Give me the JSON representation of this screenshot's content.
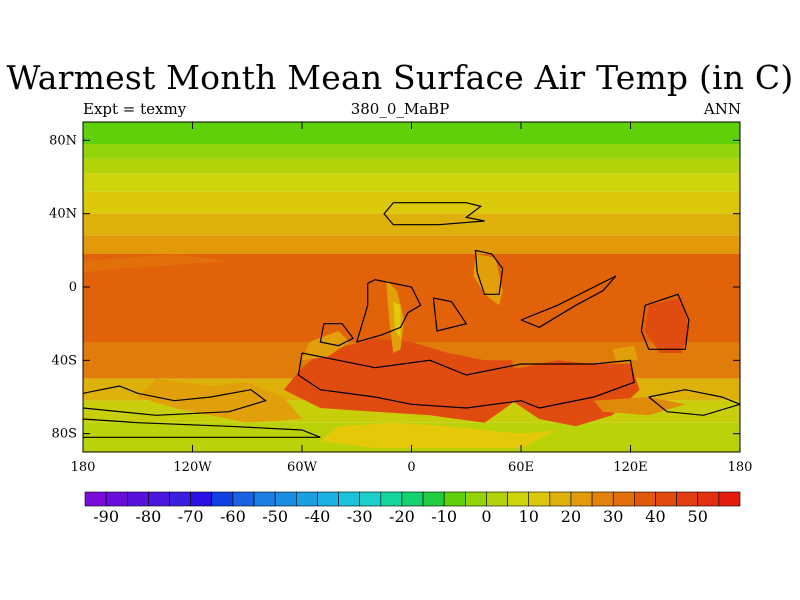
{
  "title": "Warmest Month Mean Surface Air Temp (in C)",
  "subtitle_left": "Expt = texmy",
  "subtitle_center": "380_0_MaBP",
  "subtitle_right": "ANN",
  "map": {
    "lon_range": [
      -180,
      180
    ],
    "lat_range": [
      -90,
      90
    ],
    "x_ticks": [
      {
        "value": -180,
        "label": "180"
      },
      {
        "value": -120,
        "label": "120W"
      },
      {
        "value": -60,
        "label": "60W"
      },
      {
        "value": 0,
        "label": "0"
      },
      {
        "value": 60,
        "label": "60E"
      },
      {
        "value": 120,
        "label": "120E"
      },
      {
        "value": 180,
        "label": "180"
      }
    ],
    "y_ticks": [
      {
        "value": 80,
        "label": "80N"
      },
      {
        "value": 40,
        "label": "40N"
      },
      {
        "value": 0,
        "label": "0"
      },
      {
        "value": -40,
        "label": "40S"
      },
      {
        "value": -80,
        "label": "80S"
      }
    ],
    "background_bands": [
      {
        "lat_top": 90,
        "lat_bottom": 78,
        "color": "#5ed10a"
      },
      {
        "lat_top": 78,
        "lat_bottom": 70,
        "color": "#94d40a"
      },
      {
        "lat_top": 70,
        "lat_bottom": 62,
        "color": "#b4d20a"
      },
      {
        "lat_top": 62,
        "lat_bottom": 52,
        "color": "#cdd40a"
      },
      {
        "lat_top": 52,
        "lat_bottom": 40,
        "color": "#dcc80a"
      },
      {
        "lat_top": 40,
        "lat_bottom": 28,
        "color": "#deb00a"
      },
      {
        "lat_top": 28,
        "lat_bottom": 18,
        "color": "#e29a0a"
      },
      {
        "lat_top": 18,
        "lat_bottom": -30,
        "color": "#e2620a"
      },
      {
        "lat_top": -30,
        "lat_bottom": -50,
        "color": "#e07d0a"
      },
      {
        "lat_top": -50,
        "lat_bottom": -62,
        "color": "#ddb10a"
      },
      {
        "lat_top": -62,
        "lat_bottom": -74,
        "color": "#c9ce0a"
      },
      {
        "lat_top": -74,
        "lat_bottom": -90,
        "color": "#b9d20a"
      }
    ],
    "features": [
      {
        "color": "#e2700a",
        "points": [
          [
            -180,
            14
          ],
          [
            -130,
            18
          ],
          [
            -100,
            14
          ],
          [
            -160,
            10
          ],
          [
            -180,
            8
          ]
        ]
      },
      {
        "color": "#e04b10",
        "points": [
          [
            -70,
            -56
          ],
          [
            -60,
            -44
          ],
          [
            -50,
            -36
          ],
          [
            -20,
            -28
          ],
          [
            0,
            -30
          ],
          [
            20,
            -36
          ],
          [
            40,
            -40
          ],
          [
            55,
            -40
          ],
          [
            60,
            -60
          ],
          [
            40,
            -74
          ],
          [
            10,
            -70
          ],
          [
            -20,
            -68
          ],
          [
            -50,
            -66
          ]
        ]
      },
      {
        "color": "#e04b10",
        "points": [
          [
            55,
            -44
          ],
          [
            60,
            -44
          ],
          [
            80,
            -40
          ],
          [
            100,
            -42
          ],
          [
            120,
            -42
          ],
          [
            125,
            -56
          ],
          [
            110,
            -70
          ],
          [
            90,
            -76
          ],
          [
            70,
            -72
          ],
          [
            55,
            -62
          ]
        ]
      },
      {
        "color": "#e04b10",
        "points": [
          [
            130,
            -10
          ],
          [
            148,
            -6
          ],
          [
            152,
            -24
          ],
          [
            148,
            -36
          ],
          [
            136,
            -36
          ],
          [
            128,
            -24
          ]
        ]
      },
      {
        "color": "#e1a00a",
        "points": [
          [
            -14,
            4
          ],
          [
            -8,
            -2
          ],
          [
            -4,
            -18
          ],
          [
            -6,
            -34
          ],
          [
            -10,
            -36
          ],
          [
            -12,
            -20
          ]
        ]
      },
      {
        "color": "#e4c80a",
        "points": [
          [
            -10,
            -8
          ],
          [
            -6,
            -10
          ],
          [
            -6,
            -28
          ],
          [
            -9,
            -24
          ]
        ]
      },
      {
        "color": "#e1a00a",
        "points": [
          [
            -140,
            -50
          ],
          [
            -110,
            -54
          ],
          [
            -90,
            -52
          ],
          [
            -70,
            -60
          ],
          [
            -60,
            -72
          ],
          [
            -90,
            -74
          ],
          [
            -130,
            -66
          ],
          [
            -150,
            -60
          ]
        ]
      },
      {
        "color": "#e1a00a",
        "points": [
          [
            -56,
            -30
          ],
          [
            -40,
            -24
          ],
          [
            -34,
            -30
          ],
          [
            -46,
            -38
          ],
          [
            -60,
            -40
          ]
        ]
      },
      {
        "color": "#e1a00a",
        "points": [
          [
            110,
            -34
          ],
          [
            122,
            -32
          ],
          [
            124,
            -40
          ],
          [
            112,
            -40
          ]
        ]
      },
      {
        "color": "#e1a00a",
        "points": [
          [
            35,
            18
          ],
          [
            46,
            16
          ],
          [
            50,
            -2
          ],
          [
            48,
            -10
          ],
          [
            40,
            -4
          ],
          [
            34,
            6
          ]
        ]
      },
      {
        "color": "#e4c80a",
        "points": [
          [
            -40,
            -76
          ],
          [
            -10,
            -74
          ],
          [
            20,
            -76
          ],
          [
            60,
            -80
          ],
          [
            80,
            -78
          ],
          [
            60,
            -88
          ],
          [
            -20,
            -88
          ],
          [
            -50,
            -84
          ]
        ]
      },
      {
        "color": "#e08a0a",
        "points": [
          [
            100,
            -62
          ],
          [
            130,
            -60
          ],
          [
            150,
            -64
          ],
          [
            130,
            -70
          ],
          [
            105,
            -68
          ]
        ]
      }
    ],
    "coastlines": [
      {
        "points": [
          [
            -10,
            46
          ],
          [
            30,
            46
          ],
          [
            38,
            44
          ],
          [
            30,
            38
          ],
          [
            40,
            36
          ],
          [
            15,
            34
          ],
          [
            -10,
            34
          ],
          [
            -15,
            40
          ],
          [
            -10,
            46
          ]
        ]
      },
      {
        "points": [
          [
            -24,
            2
          ],
          [
            -20,
            4
          ],
          [
            -10,
            2
          ],
          [
            0,
            0
          ],
          [
            5,
            -10
          ],
          [
            -2,
            -14
          ],
          [
            -6,
            -22
          ],
          [
            -16,
            -26
          ],
          [
            -30,
            -30
          ],
          [
            -24,
            -10
          ],
          [
            -24,
            2
          ]
        ]
      },
      {
        "points": [
          [
            -48,
            -20
          ],
          [
            -38,
            -20
          ],
          [
            -32,
            -28
          ],
          [
            -40,
            -32
          ],
          [
            -50,
            -30
          ],
          [
            -48,
            -20
          ]
        ]
      },
      {
        "points": [
          [
            35,
            20
          ],
          [
            44,
            18
          ],
          [
            50,
            10
          ],
          [
            48,
            -4
          ],
          [
            40,
            -4
          ],
          [
            36,
            8
          ],
          [
            35,
            20
          ]
        ]
      },
      {
        "points": [
          [
            12,
            -6
          ],
          [
            22,
            -8
          ],
          [
            30,
            -20
          ],
          [
            14,
            -24
          ],
          [
            12,
            -6
          ]
        ]
      },
      {
        "points": [
          [
            -60,
            -36
          ],
          [
            -40,
            -40
          ],
          [
            -20,
            -44
          ],
          [
            10,
            -40
          ],
          [
            30,
            -48
          ],
          [
            60,
            -42
          ],
          [
            100,
            -42
          ],
          [
            120,
            -40
          ],
          [
            122,
            -52
          ],
          [
            100,
            -60
          ],
          [
            70,
            -66
          ],
          [
            60,
            -62
          ],
          [
            30,
            -66
          ],
          [
            0,
            -64
          ],
          [
            -20,
            -60
          ],
          [
            -50,
            -56
          ],
          [
            -62,
            -48
          ],
          [
            -60,
            -36
          ]
        ]
      },
      {
        "points": [
          [
            128,
            -10
          ],
          [
            146,
            -4
          ],
          [
            152,
            -18
          ],
          [
            150,
            -34
          ],
          [
            130,
            -34
          ],
          [
            126,
            -24
          ],
          [
            128,
            -10
          ]
        ]
      },
      {
        "points": [
          [
            60,
            -18
          ],
          [
            80,
            -10
          ],
          [
            100,
            0
          ],
          [
            112,
            6
          ],
          [
            105,
            -2
          ],
          [
            90,
            -10
          ],
          [
            70,
            -22
          ],
          [
            60,
            -18
          ]
        ]
      },
      {
        "points": [
          [
            -180,
            -58
          ],
          [
            -160,
            -54
          ],
          [
            -150,
            -58
          ],
          [
            -130,
            -62
          ],
          [
            -110,
            -60
          ],
          [
            -88,
            -56
          ],
          [
            -80,
            -62
          ],
          [
            -100,
            -68
          ],
          [
            -140,
            -70
          ],
          [
            -180,
            -66
          ]
        ]
      },
      {
        "points": [
          [
            -180,
            -72
          ],
          [
            -150,
            -74
          ],
          [
            -100,
            -76
          ],
          [
            -60,
            -78
          ],
          [
            -50,
            -82
          ],
          [
            -100,
            -82
          ],
          [
            -180,
            -82
          ]
        ]
      },
      {
        "points": [
          [
            130,
            -60
          ],
          [
            150,
            -56
          ],
          [
            170,
            -60
          ],
          [
            180,
            -64
          ],
          [
            160,
            -70
          ],
          [
            140,
            -68
          ],
          [
            130,
            -60
          ]
        ]
      }
    ]
  },
  "colorbar": {
    "colors": [
      "#7b0ddb",
      "#6a0ddb",
      "#5a10dc",
      "#4a16dd",
      "#3a20de",
      "#2a10e2",
      "#1040e2",
      "#1a62e2",
      "#1a7ee2",
      "#1a8ee2",
      "#1aa0e2",
      "#1ab2e2",
      "#1ac2dc",
      "#1ad0c8",
      "#14d69c",
      "#14d26e",
      "#20cc40",
      "#5ed10a",
      "#94d40a",
      "#b4d20a",
      "#cdd40a",
      "#dcc80a",
      "#deb00a",
      "#e29a0a",
      "#e2820a",
      "#e2700a",
      "#e2580a",
      "#e24a10",
      "#e23e10",
      "#e23010",
      "#e21e10"
    ],
    "labels": [
      "-90",
      "-80",
      "-70",
      "-60",
      "-50",
      "-40",
      "-30",
      "-20",
      "-10",
      "0",
      "10",
      "20",
      "30",
      "40",
      "50"
    ]
  }
}
